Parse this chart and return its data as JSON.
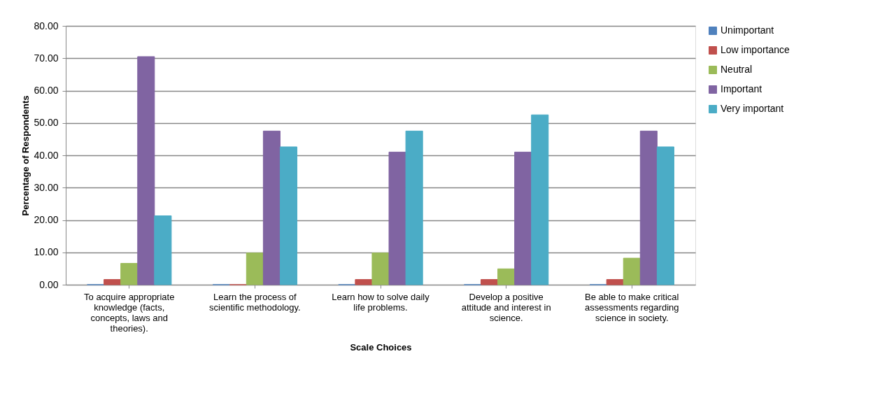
{
  "chart_data": {
    "type": "bar",
    "xlabel": "Scale Choices",
    "ylabel": "Percentage of Respondents",
    "categories": [
      "To acquire appropriate knowledge (facts, concepts, laws and theories).",
      "Learn the process of scientific methodology.",
      "Learn how to solve daily life problems.",
      "Develop a positive attitude and interest in science.",
      "Be able to make critical assessments regarding science in society."
    ],
    "series": [
      {
        "name": "Unimportant",
        "color": "#4f81bd",
        "values": [
          0,
          0,
          0,
          0,
          0
        ]
      },
      {
        "name": "Low importance",
        "color": "#c0504d",
        "values": [
          1.6,
          0,
          1.6,
          1.6,
          1.6
        ]
      },
      {
        "name": "Neutral",
        "color": "#9bbb59",
        "values": [
          6.6,
          9.8,
          9.8,
          4.9,
          8.2
        ]
      },
      {
        "name": "Important",
        "color": "#8064a2",
        "values": [
          70.5,
          47.5,
          41.0,
          41.0,
          47.5
        ]
      },
      {
        "name": "Very important",
        "color": "#4bacc6",
        "values": [
          21.3,
          42.6,
          47.5,
          52.5,
          42.6
        ]
      }
    ],
    "ylim": [
      0,
      80
    ],
    "yticks": [
      {
        "value": 0,
        "label": "0.00"
      },
      {
        "value": 10,
        "label": "10.00"
      },
      {
        "value": 20,
        "label": "20.00"
      },
      {
        "value": 30,
        "label": "30.00"
      },
      {
        "value": 40,
        "label": "40.00"
      },
      {
        "value": 50,
        "label": "50.00"
      },
      {
        "value": 60,
        "label": "60.00"
      },
      {
        "value": 70,
        "label": "70.00"
      },
      {
        "value": 80,
        "label": "80.00"
      }
    ],
    "grid": "y",
    "legend": "right"
  }
}
